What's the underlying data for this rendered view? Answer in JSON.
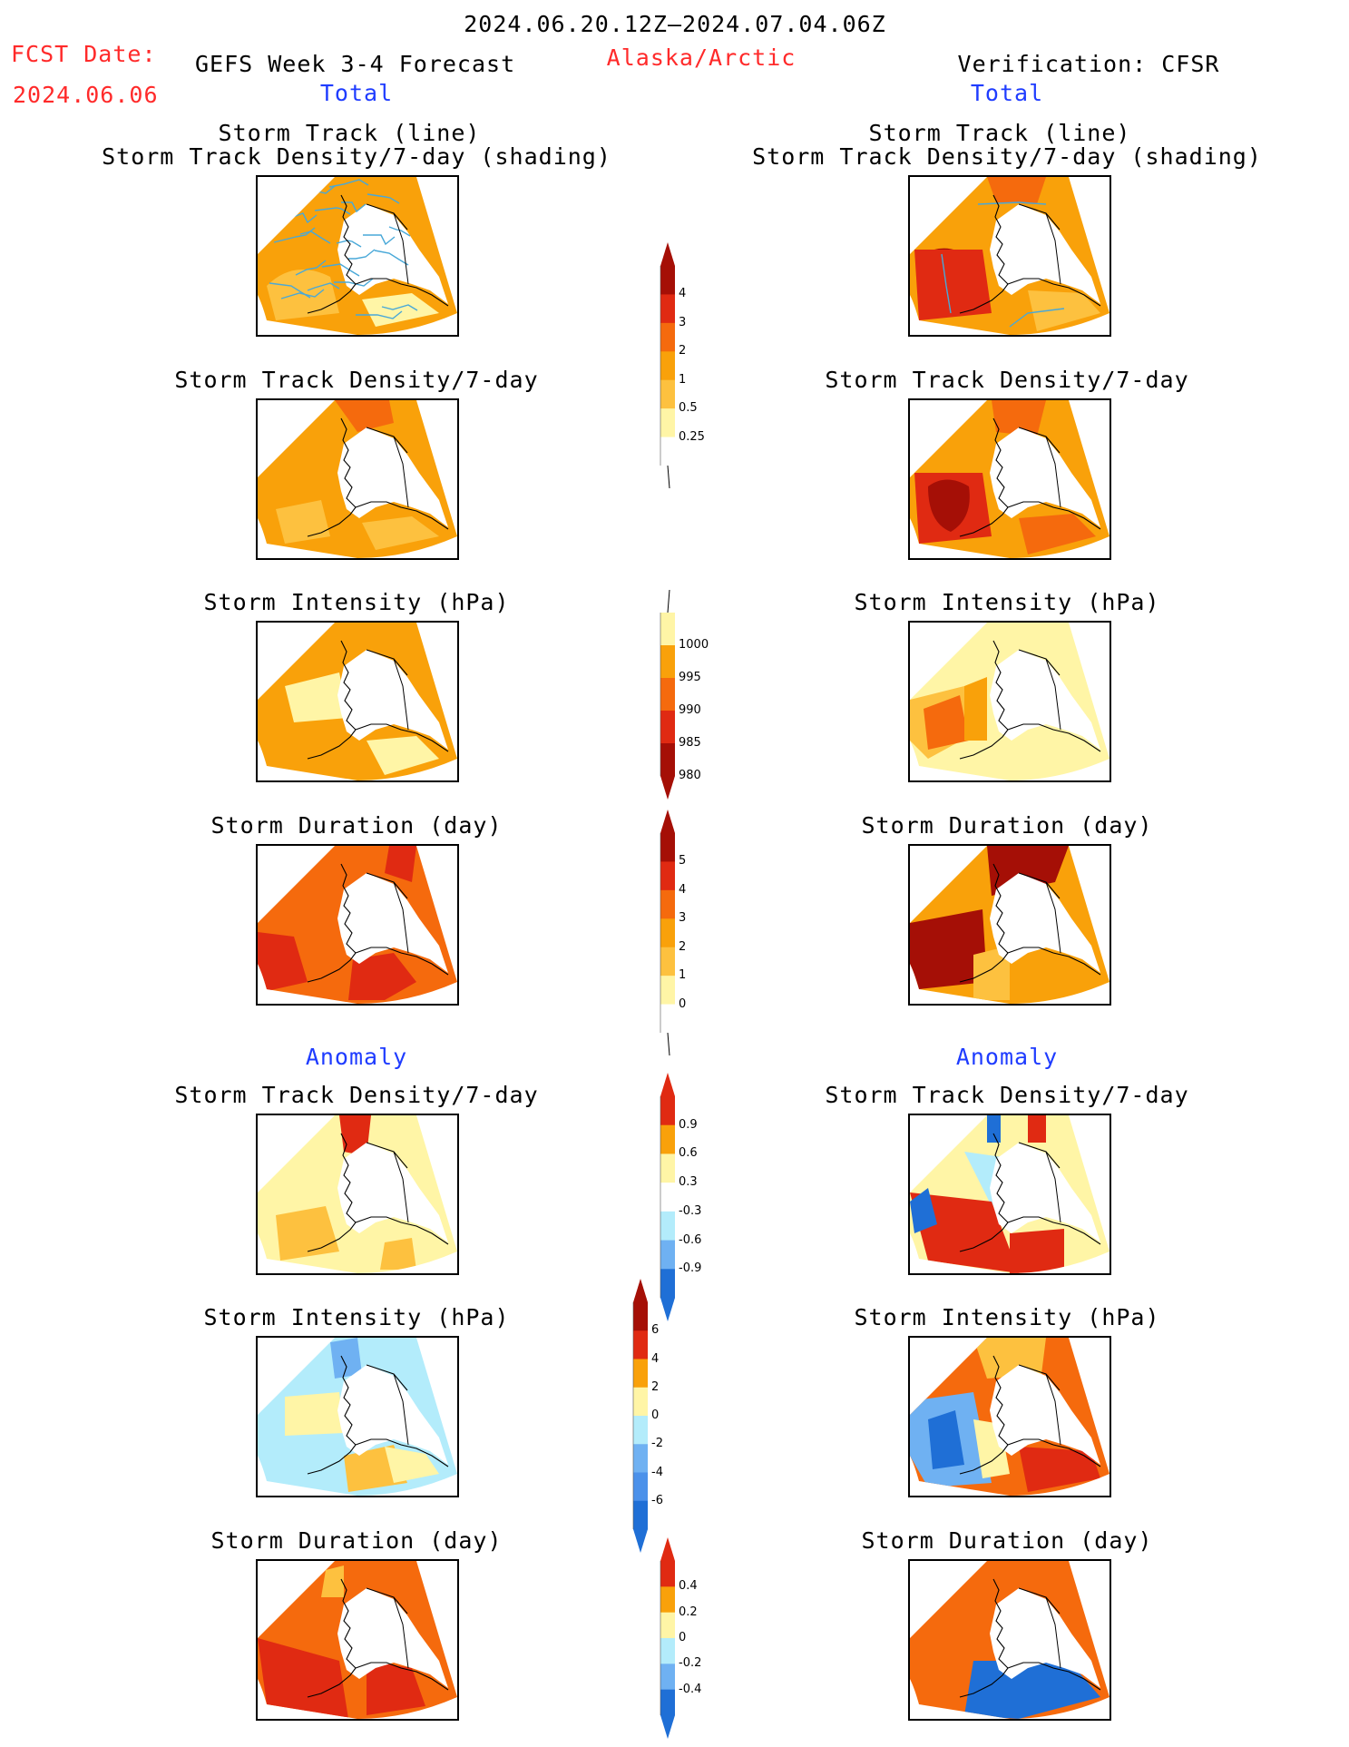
{
  "header": {
    "date_range": "2024.06.20.12Z–2024.07.04.06Z",
    "fcst_label": "FCST Date:",
    "fcst_date": "2024.06.06",
    "left_title": "GEFS Week 3-4 Forecast",
    "region": "Alaska/Arctic",
    "right_title": "Verification: CFSR",
    "total_left": "Total",
    "total_right": "Total"
  },
  "sections": {
    "anomaly_left": "Anomaly",
    "anomaly_right": "Anomaly"
  },
  "panel_titles": {
    "track_line": "Storm Track (line)",
    "track_density_shading": "Storm Track Density/7-day (shading)",
    "track_density": "Storm Track Density/7-day",
    "intensity": "Storm Intensity (hPa)",
    "duration": "Storm Duration (day)"
  },
  "colorbars": {
    "density": {
      "labels": [
        "4",
        "3",
        "2",
        "1",
        "0.5",
        "0.25"
      ]
    },
    "intensity": {
      "labels": [
        "1000",
        "995",
        "990",
        "985",
        "980"
      ]
    },
    "duration": {
      "labels": [
        "5",
        "4",
        "3",
        "2",
        "1",
        "0"
      ]
    },
    "density_anom": {
      "labels": [
        "0.9",
        "0.6",
        "0.3",
        "-0.3",
        "-0.6",
        "-0.9"
      ]
    },
    "intensity_anom": {
      "labels": [
        "6",
        "4",
        "2",
        "0",
        "-2",
        "-4",
        "-6"
      ]
    },
    "duration_anom": {
      "labels": [
        "0.4",
        "0.2",
        "0",
        "-0.2",
        "-0.4"
      ]
    }
  },
  "colors": {
    "pale_yellow": "#fff5a6",
    "light_orange": "#fdc13f",
    "orange": "#f9a10a",
    "dark_orange": "#f56a0d",
    "red": "#e02a12",
    "dark_red": "#a50f06",
    "light_blue": "#b3ecfb",
    "mid_blue": "#6fb1f2",
    "blue": "#1f6fd6",
    "track_line": "#48a8d8"
  }
}
